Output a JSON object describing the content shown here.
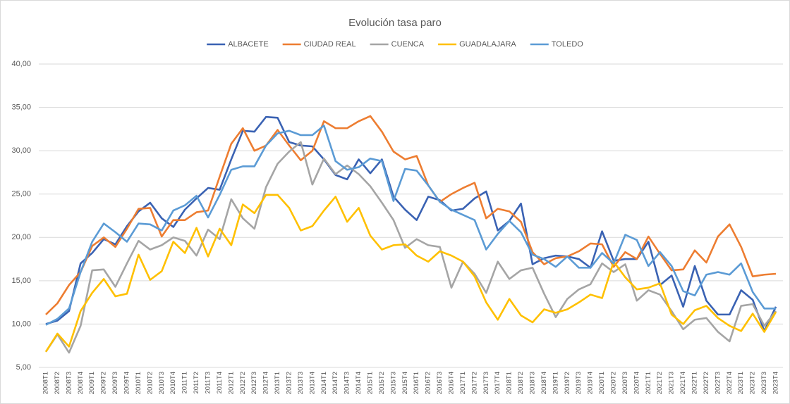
{
  "chart_data": {
    "type": "line",
    "title": "Evolución tasa paro",
    "categories": [
      "2008T1",
      "2008T2",
      "2008T3",
      "2008T4",
      "2009T1",
      "2009T2",
      "2009T3",
      "2009T4",
      "2010T1",
      "2010T2",
      "2010T3",
      "2010T4",
      "2011T1",
      "2011T2",
      "2011T3",
      "2011T4",
      "2012T1",
      "2012T2",
      "2012T3",
      "2012T4",
      "2013T1",
      "2013T2",
      "2013T3",
      "2013T4",
      "2014T1",
      "2014T2",
      "2014T3",
      "2014T4",
      "2015T1",
      "2015T2",
      "2015T3",
      "2015T4",
      "2016T1",
      "2016T2",
      "2016T3",
      "2016T4",
      "2017T1",
      "2017T2",
      "2017T3",
      "2017T4",
      "2018T1",
      "2018T2",
      "2018T3",
      "2018T4",
      "2019T1",
      "2019T2",
      "2019T3",
      "2019T4",
      "2020T1",
      "2020T2",
      "2020T3",
      "2020T4",
      "2021T1",
      "2021T2",
      "2021T3",
      "2021T4",
      "2022T1",
      "2022T2",
      "2022T3",
      "2022T4",
      "2023T1",
      "2023T2",
      "2023T3",
      "2023T4"
    ],
    "series": [
      {
        "name": "ALBACETE",
        "color": "#3a62b3",
        "values": [
          10.0,
          10.4,
          11.5,
          17.0,
          18.2,
          19.8,
          19.2,
          21.3,
          23.0,
          24.0,
          22.2,
          21.2,
          23.2,
          24.5,
          25.7,
          25.5,
          29.0,
          32.3,
          32.2,
          33.9,
          33.8,
          31.0,
          30.6,
          30.5,
          29.0,
          27.2,
          26.7,
          29.0,
          27.4,
          29.0,
          24.7,
          23.2,
          22.0,
          24.7,
          24.3,
          23.1,
          23.3,
          24.5,
          25.3,
          20.8,
          21.9,
          23.9,
          16.9,
          17.6,
          17.9,
          17.8,
          17.5,
          16.5,
          20.7,
          17.3,
          17.5,
          17.5,
          19.5,
          14.5,
          15.6,
          12.0,
          16.7,
          12.7,
          11.1,
          11.1,
          13.9,
          12.8,
          9.2,
          12.0
        ]
      },
      {
        "name": "CIUDAD REAL",
        "color": "#ed7d31",
        "values": [
          11.1,
          12.4,
          14.5,
          16.0,
          19.0,
          20.0,
          18.9,
          21.0,
          23.3,
          23.4,
          20.1,
          22.0,
          22.0,
          22.9,
          23.1,
          27.0,
          30.8,
          32.6,
          30.0,
          30.6,
          32.4,
          30.6,
          28.9,
          30.0,
          33.4,
          32.6,
          32.6,
          33.4,
          34.0,
          32.2,
          29.9,
          29.0,
          29.4,
          26.0,
          24.1,
          25.0,
          25.7,
          26.3,
          22.2,
          23.3,
          23.0,
          21.8,
          18.3,
          16.9,
          17.6,
          17.8,
          18.4,
          19.3,
          19.2,
          16.6,
          18.3,
          17.5,
          20.1,
          18.1,
          16.2,
          16.3,
          18.5,
          17.1,
          20.1,
          21.5,
          18.9,
          15.5,
          15.7,
          15.8
        ]
      },
      {
        "name": "CUENCA",
        "color": "#a5a5a5",
        "values": [
          6.8,
          8.8,
          6.7,
          9.8,
          16.2,
          16.3,
          14.3,
          17.0,
          19.6,
          18.6,
          19.1,
          20.0,
          19.6,
          17.9,
          20.9,
          19.8,
          24.4,
          22.2,
          21.0,
          25.8,
          28.5,
          29.9,
          31.0,
          26.1,
          29.1,
          27.3,
          28.3,
          27.3,
          25.9,
          24.0,
          22.0,
          18.8,
          19.8,
          19.1,
          18.9,
          14.2,
          17.2,
          15.8,
          13.6,
          17.2,
          15.2,
          16.2,
          16.5,
          13.5,
          10.8,
          12.9,
          14.0,
          14.6,
          17.0,
          16.0,
          16.9,
          12.7,
          13.9,
          13.4,
          11.5,
          9.4,
          10.5,
          10.7,
          9.1,
          8.0,
          12.1,
          12.3,
          9.8,
          11.5
        ]
      },
      {
        "name": "GUADALAJARA",
        "color": "#ffc000",
        "values": [
          6.8,
          8.9,
          7.4,
          11.5,
          13.6,
          15.2,
          13.2,
          13.5,
          18.0,
          15.1,
          16.1,
          19.5,
          18.2,
          21.1,
          17.8,
          21.0,
          19.1,
          23.8,
          22.8,
          24.9,
          24.9,
          23.4,
          20.8,
          21.3,
          23.1,
          24.7,
          21.8,
          23.4,
          20.2,
          18.6,
          19.1,
          19.2,
          17.9,
          17.2,
          18.4,
          17.9,
          17.2,
          15.5,
          12.5,
          10.5,
          12.9,
          11.0,
          10.2,
          11.7,
          11.3,
          11.7,
          12.5,
          13.4,
          13.0,
          17.2,
          15.4,
          14.0,
          14.2,
          14.7,
          11.1,
          10.0,
          11.6,
          12.1,
          10.7,
          9.8,
          9.2,
          11.2,
          9.1,
          11.4
        ]
      },
      {
        "name": "TOLEDO",
        "color": "#5b9bd5",
        "values": [
          9.9,
          10.6,
          11.8,
          16.0,
          19.5,
          21.6,
          20.6,
          19.5,
          21.6,
          21.5,
          20.8,
          23.1,
          23.7,
          24.8,
          22.3,
          24.9,
          27.8,
          28.2,
          28.2,
          30.6,
          32.0,
          32.3,
          31.8,
          31.8,
          32.9,
          28.8,
          27.8,
          28.1,
          29.1,
          28.8,
          24.2,
          27.9,
          27.7,
          26.0,
          24.1,
          23.2,
          22.6,
          22.0,
          18.6,
          20.4,
          21.9,
          20.6,
          18.0,
          17.5,
          16.6,
          17.8,
          16.5,
          16.5,
          18.2,
          17.0,
          20.3,
          19.7,
          16.7,
          18.3,
          16.7,
          13.8,
          13.3,
          15.7,
          16.0,
          15.7,
          17.0,
          13.7,
          11.8,
          11.8
        ]
      }
    ],
    "ylim": [
      5,
      40
    ],
    "yticks": [
      {
        "value": 5,
        "label": "5,00"
      },
      {
        "value": 10,
        "label": "10,00"
      },
      {
        "value": 15,
        "label": "15,00"
      },
      {
        "value": 20,
        "label": "20,00"
      },
      {
        "value": 25,
        "label": "25,00"
      },
      {
        "value": 30,
        "label": "30,00"
      },
      {
        "value": 35,
        "label": "35,00"
      },
      {
        "value": 40,
        "label": "40,00"
      }
    ],
    "grid": true,
    "legend": "top"
  }
}
